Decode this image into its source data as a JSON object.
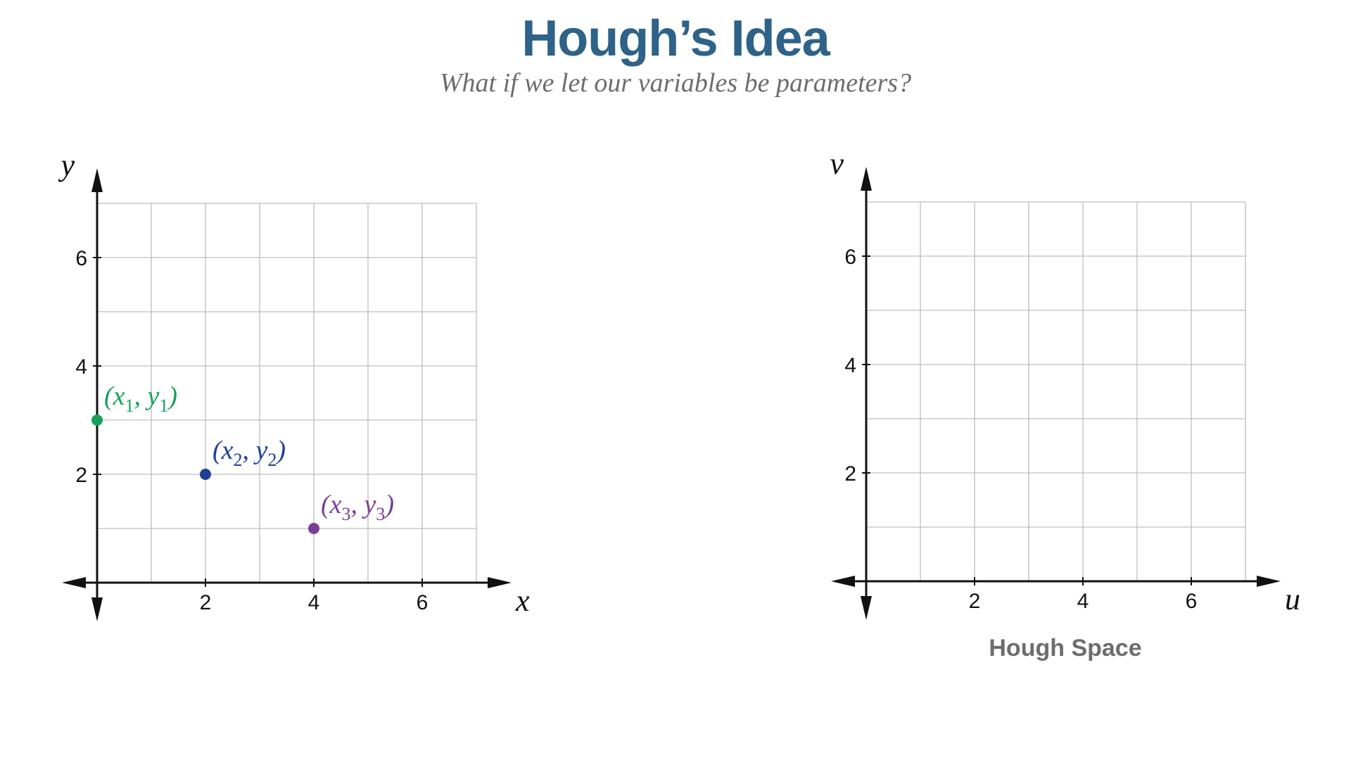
{
  "title": "Hough’s Idea",
  "subtitle": "What if we let our variables be parameters?",
  "caption": "Hough Space",
  "chart_data": [
    {
      "type": "scatter",
      "xlabel": "x",
      "ylabel": "y",
      "xlim": [
        0,
        7
      ],
      "ylim": [
        0,
        7
      ],
      "xticks": [
        "2",
        "4",
        "6"
      ],
      "yticks": [
        "2",
        "4",
        "6"
      ],
      "grid": true,
      "points": [
        {
          "x": 0,
          "y": 3,
          "label": [
            "(",
            "x",
            "1",
            ", ",
            "y",
            "1",
            ")"
          ],
          "color": "#17a05a"
        },
        {
          "x": 2,
          "y": 2,
          "label": [
            "(",
            "x",
            "2",
            ", ",
            "y",
            "2",
            ")"
          ],
          "color": "#1f3f96"
        },
        {
          "x": 4,
          "y": 1,
          "label": [
            "(",
            "x",
            "3",
            ", ",
            "y",
            "3",
            ")"
          ],
          "color": "#7b3d96"
        }
      ]
    },
    {
      "type": "scatter",
      "xlabel": "u",
      "ylabel": "v",
      "xlim": [
        0,
        7
      ],
      "ylim": [
        0,
        7
      ],
      "xticks": [
        "2",
        "4",
        "6"
      ],
      "yticks": [
        "2",
        "4",
        "6"
      ],
      "grid": true,
      "points": []
    }
  ]
}
